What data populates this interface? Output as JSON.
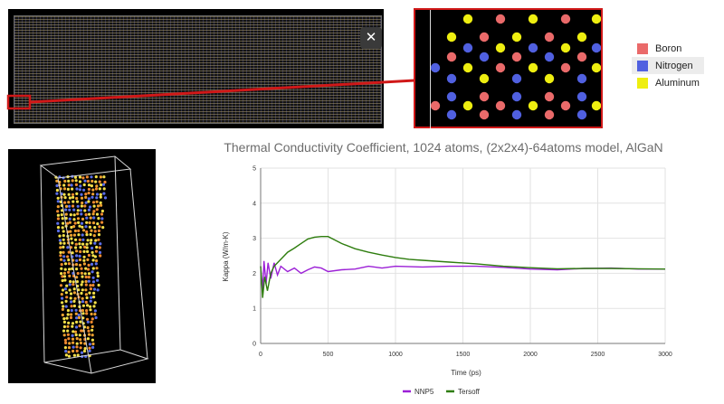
{
  "simulation_view": {
    "close_icon": "close-icon",
    "close_glyph": "✕"
  },
  "atom_legend": {
    "items": [
      {
        "label": "Boron",
        "color": "#ea6a6a"
      },
      {
        "label": "Nitrogen",
        "color": "#5060e0"
      },
      {
        "label": "Aluminum",
        "color": "#eeee10"
      }
    ],
    "selected_index": 1
  },
  "chart_data": {
    "type": "line",
    "title": "Thermal Conductivity Coefficient, 1024 atoms, (2x2x4)-64atoms model, AlGaN",
    "xlabel": "Time (ps)",
    "ylabel": "Kappa (W/m-K)",
    "xlim": [
      0,
      3000
    ],
    "ylim": [
      0,
      5
    ],
    "xticks": [
      0,
      500,
      1000,
      1500,
      2000,
      2500,
      3000
    ],
    "yticks": [
      0,
      1,
      2,
      3,
      4,
      5
    ],
    "grid": true,
    "legend_position": "bottom",
    "series": [
      {
        "name": "NNP5",
        "color": "#9b1fd6",
        "x": [
          0,
          15,
          25,
          40,
          55,
          75,
          100,
          125,
          150,
          200,
          250,
          300,
          350,
          400,
          450,
          500,
          600,
          700,
          800,
          900,
          1000,
          1200,
          1400,
          1600,
          1800,
          2000,
          2200,
          2400,
          2600,
          2800,
          3000
        ],
        "y": [
          2.2,
          1.5,
          2.35,
          1.7,
          2.3,
          1.85,
          2.3,
          1.95,
          2.2,
          2.05,
          2.15,
          2.0,
          2.1,
          2.18,
          2.15,
          2.05,
          2.1,
          2.12,
          2.2,
          2.15,
          2.2,
          2.18,
          2.2,
          2.2,
          2.17,
          2.12,
          2.1,
          2.14,
          2.15,
          2.12,
          2.12
        ]
      },
      {
        "name": "Tersoff",
        "color": "#2e7d0e",
        "x": [
          0,
          15,
          30,
          50,
          75,
          100,
          150,
          200,
          250,
          300,
          350,
          400,
          450,
          500,
          550,
          600,
          700,
          800,
          900,
          1000,
          1100,
          1200,
          1400,
          1600,
          1800,
          2000,
          2200,
          2400,
          2600,
          2800,
          3000
        ],
        "y": [
          2.2,
          1.3,
          1.9,
          1.5,
          2.0,
          2.2,
          2.4,
          2.6,
          2.72,
          2.85,
          2.98,
          3.03,
          3.05,
          3.05,
          2.95,
          2.85,
          2.7,
          2.6,
          2.52,
          2.45,
          2.4,
          2.37,
          2.32,
          2.27,
          2.2,
          2.16,
          2.13,
          2.14,
          2.14,
          2.13,
          2.12
        ]
      }
    ]
  }
}
